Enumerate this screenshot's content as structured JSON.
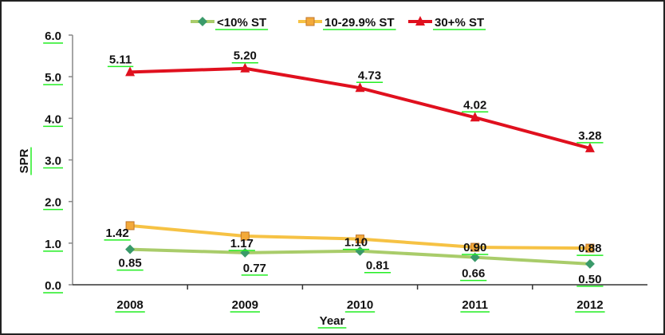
{
  "chart_data": {
    "type": "line",
    "title": "",
    "xlabel": "Year",
    "ylabel": "SPR",
    "categories": [
      "2008",
      "2009",
      "2010",
      "2011",
      "2012"
    ],
    "ylim": [
      0,
      6
    ],
    "yticks": [
      "0.0",
      "1.0",
      "2.0",
      "3.0",
      "4.0",
      "5.0",
      "6.0"
    ],
    "grid": false,
    "legend_position": "top",
    "series": [
      {
        "name": "<10% ST",
        "values": [
          0.85,
          0.77,
          0.81,
          0.66,
          0.5
        ],
        "labels": [
          "0.85",
          "0.77",
          "0.81",
          "0.66",
          "0.50"
        ],
        "color": "#a9cc6a",
        "marker": "diamond",
        "marker_color": "#3a9a6a"
      },
      {
        "name": "10-29.9% ST",
        "values": [
          1.42,
          1.17,
          1.1,
          0.9,
          0.88
        ],
        "labels": [
          "1.42",
          "1.17",
          "1.10",
          "0.90",
          "0.88"
        ],
        "color": "#f6c244",
        "marker": "square",
        "marker_color": "#f3a93a"
      },
      {
        "name": "30+% ST",
        "values": [
          5.11,
          5.2,
          4.73,
          4.02,
          3.28
        ],
        "labels": [
          "5.11",
          "5.20",
          "4.73",
          "4.02",
          "3.28"
        ],
        "color": "#e0101e",
        "marker": "triangle",
        "marker_color": "#e0101e"
      }
    ],
    "label_underline_color": "#22ee22"
  }
}
